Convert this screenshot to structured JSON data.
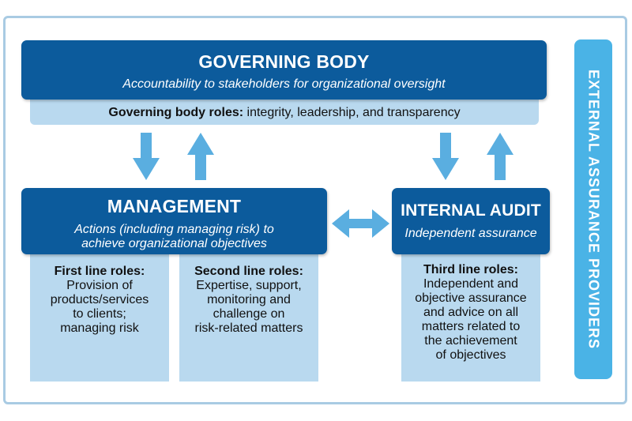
{
  "governing_body": {
    "title": "GOVERNING BODY",
    "subtitle": "Accountability to stakeholders for organizational oversight",
    "roles_label": "Governing body roles:",
    "roles_text": " integrity, leadership, and transparency"
  },
  "management": {
    "title": "MANAGEMENT",
    "subtitle_line1": "Actions (including managing risk) to",
    "subtitle_line2": "achieve organizational objectives"
  },
  "first_line": {
    "heading": "First line roles:",
    "lines": [
      "Provision of",
      "products/services",
      "to clients;",
      "managing risk"
    ]
  },
  "second_line": {
    "heading": "Second line roles:",
    "lines": [
      "Expertise, support,",
      "monitoring and",
      "challenge on",
      "risk-related matters"
    ]
  },
  "internal_audit": {
    "title": "INTERNAL AUDIT",
    "subtitle": "Independent assurance"
  },
  "third_line": {
    "heading": "Third line roles:",
    "lines": [
      "Independent and",
      "objective assurance",
      "and advice on all",
      "matters related to",
      "the achievement",
      "of objectives"
    ]
  },
  "external": {
    "label": "EXTERNAL ASSURANCE PROVIDERS"
  },
  "colors": {
    "dark_blue": "#0c5b9c",
    "light_blue": "#b9d9ef",
    "arrow_blue": "#5aaee0",
    "side_blue": "#4ab3e6",
    "frame": "#a9cbe3"
  }
}
